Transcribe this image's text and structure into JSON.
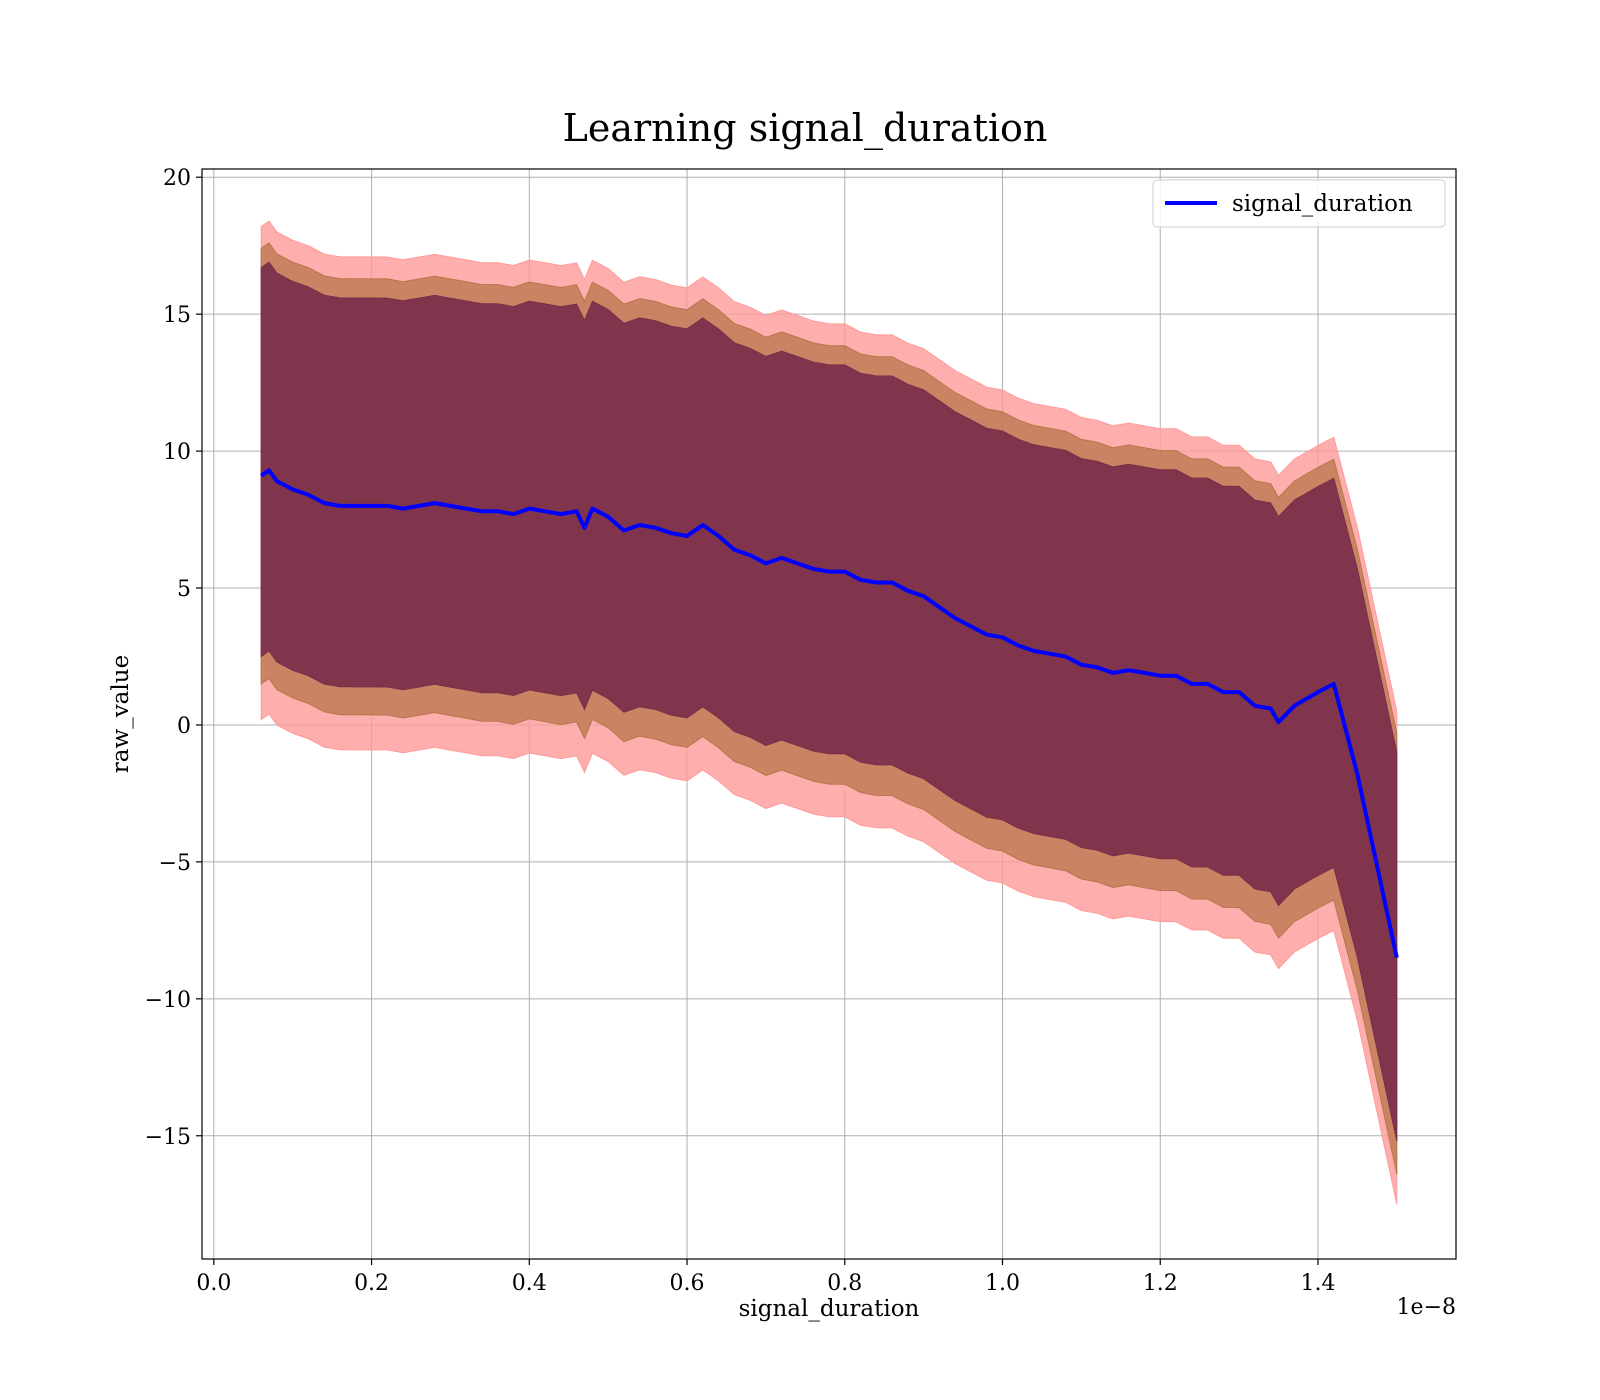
{
  "chart_data": {
    "type": "line",
    "title": "Learning signal_duration",
    "xlabel": "signal_duration",
    "ylabel": "raw_value",
    "x_offset_label": "1e−8",
    "xlim": [
      -0.015,
      1.575
    ],
    "ylim": [
      -19.5,
      20.3
    ],
    "x_ticks": [
      0.0,
      0.2,
      0.4,
      0.6,
      0.8,
      1.0,
      1.2,
      1.4
    ],
    "x_tick_labels": [
      "0.0",
      "0.2",
      "0.4",
      "0.6",
      "0.8",
      "1.0",
      "1.2",
      "1.4"
    ],
    "y_ticks": [
      -15,
      -10,
      -5,
      0,
      5,
      10,
      15,
      20
    ],
    "y_tick_labels": [
      "−15",
      "−10",
      "−5",
      "0",
      "5",
      "10",
      "15",
      "20"
    ],
    "grid": true,
    "legend": {
      "position": "upper-right",
      "entries": [
        "signal_duration"
      ]
    },
    "series": [
      {
        "name": "signal_duration",
        "color": "#0000ff",
        "x": [
          0.06,
          0.07,
          0.08,
          0.1,
          0.12,
          0.14,
          0.16,
          0.18,
          0.2,
          0.22,
          0.24,
          0.26,
          0.28,
          0.3,
          0.32,
          0.34,
          0.36,
          0.38,
          0.4,
          0.42,
          0.44,
          0.46,
          0.47,
          0.48,
          0.5,
          0.52,
          0.54,
          0.56,
          0.58,
          0.6,
          0.62,
          0.64,
          0.66,
          0.68,
          0.7,
          0.72,
          0.74,
          0.76,
          0.78,
          0.8,
          0.82,
          0.84,
          0.86,
          0.88,
          0.9,
          0.92,
          0.94,
          0.96,
          0.98,
          1.0,
          1.02,
          1.04,
          1.06,
          1.08,
          1.1,
          1.12,
          1.14,
          1.16,
          1.18,
          1.2,
          1.22,
          1.24,
          1.26,
          1.28,
          1.3,
          1.32,
          1.34,
          1.35,
          1.37,
          1.4,
          1.42,
          1.45,
          1.5
        ],
        "y": [
          9.1,
          9.3,
          8.9,
          8.6,
          8.4,
          8.1,
          8.0,
          8.0,
          8.0,
          8.0,
          7.9,
          8.0,
          8.1,
          8.0,
          7.9,
          7.8,
          7.8,
          7.7,
          7.9,
          7.8,
          7.7,
          7.8,
          7.2,
          7.9,
          7.6,
          7.1,
          7.3,
          7.2,
          7.0,
          6.9,
          7.3,
          6.9,
          6.4,
          6.2,
          5.9,
          6.1,
          5.9,
          5.7,
          5.6,
          5.6,
          5.3,
          5.2,
          5.2,
          4.9,
          4.7,
          4.3,
          3.9,
          3.6,
          3.3,
          3.2,
          2.9,
          2.7,
          2.6,
          2.5,
          2.2,
          2.1,
          1.9,
          2.0,
          1.9,
          1.8,
          1.8,
          1.5,
          1.5,
          1.2,
          1.2,
          0.7,
          0.6,
          0.1,
          0.7,
          1.2,
          1.5,
          -1.8,
          -8.5
        ],
        "bands": [
          {
            "level": "inner",
            "color": "#7a2f4a",
            "upper_offset": 7.6,
            "lower_offset": 6.6,
            "upper_offset_end": 7.5,
            "lower_offset_end": 6.7
          },
          {
            "level": "middle",
            "color": "#b8754a",
            "upper_offset": 8.3,
            "lower_offset": 7.6,
            "upper_offset_end": 8.2,
            "lower_offset_end": 7.9
          },
          {
            "level": "outer",
            "color": "#ff9a9a",
            "upper_offset": 9.1,
            "lower_offset": 8.9,
            "upper_offset_end": 9.0,
            "lower_offset_end": 9.0
          }
        ]
      }
    ]
  }
}
